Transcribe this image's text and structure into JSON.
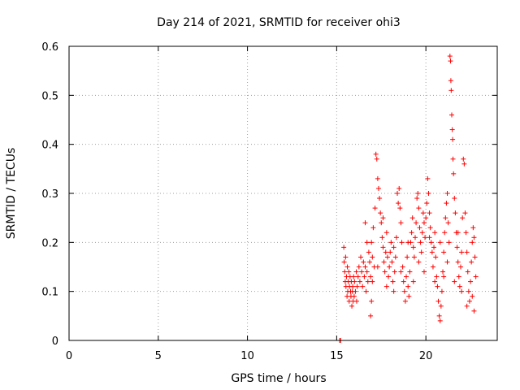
{
  "chart_data": {
    "type": "scatter",
    "title": "Day 214 of 2021, SRMTID for receiver ohi3",
    "xlabel": "GPS time / hours",
    "ylabel": "SRMTID / TECUs",
    "xlim": [
      0,
      24
    ],
    "ylim": [
      0,
      0.6
    ],
    "xticks": [
      0,
      5,
      10,
      15,
      20
    ],
    "xtick_labels": [
      "0",
      "5",
      "10",
      "15",
      "20"
    ],
    "yticks": [
      0,
      0.1,
      0.2,
      0.3,
      0.4,
      0.5,
      0.6
    ],
    "ytick_labels": [
      "0",
      "0.1",
      "0.2",
      "0.3",
      "0.4",
      "0.5",
      "0.6"
    ],
    "grid": true,
    "marker": "+",
    "color": "#ff0000",
    "series": [
      {
        "name": "SRMTID",
        "points": [
          [
            15.17,
            0.0
          ],
          [
            15.22,
            0.0
          ],
          [
            15.4,
            0.19
          ],
          [
            15.42,
            0.16
          ],
          [
            15.45,
            0.14
          ],
          [
            15.48,
            0.12
          ],
          [
            15.5,
            0.17
          ],
          [
            15.52,
            0.11
          ],
          [
            15.55,
            0.13
          ],
          [
            15.58,
            0.09
          ],
          [
            15.6,
            0.15
          ],
          [
            15.62,
            0.1
          ],
          [
            15.65,
            0.12
          ],
          [
            15.68,
            0.14
          ],
          [
            15.7,
            0.08
          ],
          [
            15.72,
            0.11
          ],
          [
            15.75,
            0.13
          ],
          [
            15.78,
            0.1
          ],
          [
            15.8,
            0.09
          ],
          [
            15.82,
            0.12
          ],
          [
            15.85,
            0.07
          ],
          [
            15.88,
            0.1
          ],
          [
            15.9,
            0.11
          ],
          [
            15.92,
            0.08
          ],
          [
            15.95,
            0.13
          ],
          [
            15.98,
            0.09
          ],
          [
            16.0,
            0.12
          ],
          [
            16.05,
            0.1
          ],
          [
            16.1,
            0.14
          ],
          [
            16.12,
            0.08
          ],
          [
            16.15,
            0.11
          ],
          [
            16.2,
            0.13
          ],
          [
            16.25,
            0.15
          ],
          [
            16.3,
            0.12
          ],
          [
            16.35,
            0.17
          ],
          [
            16.4,
            0.14
          ],
          [
            16.45,
            0.11
          ],
          [
            16.5,
            0.16
          ],
          [
            16.55,
            0.13
          ],
          [
            16.6,
            0.15
          ],
          [
            16.65,
            0.1
          ],
          [
            16.7,
            0.14
          ],
          [
            16.75,
            0.12
          ],
          [
            16.8,
            0.18
          ],
          [
            16.85,
            0.16
          ],
          [
            16.9,
            0.13
          ],
          [
            16.95,
            0.2
          ],
          [
            17.0,
            0.17
          ],
          [
            17.05,
            0.23
          ],
          [
            17.1,
            0.15
          ],
          [
            16.6,
            0.24
          ],
          [
            16.7,
            0.2
          ],
          [
            16.9,
            0.05
          ],
          [
            16.95,
            0.08
          ],
          [
            17.0,
            0.12
          ],
          [
            17.15,
            0.27
          ],
          [
            17.2,
            0.38
          ],
          [
            17.25,
            0.37
          ],
          [
            17.3,
            0.33
          ],
          [
            17.35,
            0.31
          ],
          [
            17.4,
            0.29
          ],
          [
            17.45,
            0.26
          ],
          [
            17.5,
            0.24
          ],
          [
            17.55,
            0.21
          ],
          [
            17.6,
            0.19
          ],
          [
            17.65,
            0.16
          ],
          [
            17.7,
            0.14
          ],
          [
            17.75,
            0.18
          ],
          [
            17.8,
            0.22
          ],
          [
            17.85,
            0.17
          ],
          [
            17.9,
            0.13
          ],
          [
            17.95,
            0.15
          ],
          [
            18.0,
            0.18
          ],
          [
            18.05,
            0.2
          ],
          [
            18.1,
            0.16
          ],
          [
            18.15,
            0.12
          ],
          [
            18.2,
            0.1
          ],
          [
            18.25,
            0.14
          ],
          [
            18.3,
            0.17
          ],
          [
            18.35,
            0.21
          ],
          [
            18.4,
            0.3
          ],
          [
            18.45,
            0.28
          ],
          [
            18.5,
            0.31
          ],
          [
            18.55,
            0.27
          ],
          [
            18.6,
            0.24
          ],
          [
            18.65,
            0.2
          ],
          [
            18.7,
            0.15
          ],
          [
            18.75,
            0.12
          ],
          [
            18.8,
            0.1
          ],
          [
            18.85,
            0.08
          ],
          [
            18.9,
            0.13
          ],
          [
            18.95,
            0.17
          ],
          [
            19.0,
            0.11
          ],
          [
            19.05,
            0.09
          ],
          [
            19.1,
            0.14
          ],
          [
            19.15,
            0.2
          ],
          [
            19.2,
            0.22
          ],
          [
            19.25,
            0.25
          ],
          [
            19.3,
            0.19
          ],
          [
            19.35,
            0.17
          ],
          [
            19.4,
            0.21
          ],
          [
            19.45,
            0.24
          ],
          [
            19.5,
            0.29
          ],
          [
            19.55,
            0.3
          ],
          [
            19.6,
            0.27
          ],
          [
            19.65,
            0.23
          ],
          [
            19.7,
            0.2
          ],
          [
            19.75,
            0.18
          ],
          [
            19.8,
            0.22
          ],
          [
            19.85,
            0.26
          ],
          [
            19.9,
            0.24
          ],
          [
            19.95,
            0.21
          ],
          [
            20.0,
            0.25
          ],
          [
            20.05,
            0.28
          ],
          [
            20.1,
            0.33
          ],
          [
            20.15,
            0.3
          ],
          [
            20.2,
            0.26
          ],
          [
            20.25,
            0.23
          ],
          [
            20.3,
            0.2
          ],
          [
            20.35,
            0.18
          ],
          [
            20.4,
            0.15
          ],
          [
            20.45,
            0.19
          ],
          [
            20.5,
            0.22
          ],
          [
            20.55,
            0.17
          ],
          [
            20.6,
            0.13
          ],
          [
            20.65,
            0.11
          ],
          [
            20.7,
            0.08
          ],
          [
            20.75,
            0.05
          ],
          [
            20.8,
            0.04
          ],
          [
            20.85,
            0.07
          ],
          [
            20.9,
            0.1
          ],
          [
            20.95,
            0.14
          ],
          [
            21.0,
            0.18
          ],
          [
            21.05,
            0.22
          ],
          [
            21.1,
            0.25
          ],
          [
            21.15,
            0.28
          ],
          [
            21.2,
            0.3
          ],
          [
            21.25,
            0.24
          ],
          [
            21.3,
            0.2
          ],
          [
            21.35,
            0.58
          ],
          [
            21.38,
            0.57
          ],
          [
            21.4,
            0.53
          ],
          [
            21.42,
            0.51
          ],
          [
            21.45,
            0.46
          ],
          [
            21.48,
            0.43
          ],
          [
            21.5,
            0.41
          ],
          [
            21.52,
            0.37
          ],
          [
            21.55,
            0.34
          ],
          [
            21.6,
            0.29
          ],
          [
            21.65,
            0.26
          ],
          [
            21.7,
            0.22
          ],
          [
            21.75,
            0.19
          ],
          [
            21.8,
            0.16
          ],
          [
            21.85,
            0.13
          ],
          [
            21.9,
            0.11
          ],
          [
            21.95,
            0.15
          ],
          [
            22.0,
            0.18
          ],
          [
            22.05,
            0.25
          ],
          [
            22.1,
            0.37
          ],
          [
            22.15,
            0.36
          ],
          [
            22.2,
            0.26
          ],
          [
            22.25,
            0.22
          ],
          [
            22.3,
            0.18
          ],
          [
            22.35,
            0.14
          ],
          [
            22.4,
            0.1
          ],
          [
            22.45,
            0.08
          ],
          [
            22.5,
            0.12
          ],
          [
            22.55,
            0.16
          ],
          [
            22.6,
            0.2
          ],
          [
            22.65,
            0.23
          ],
          [
            22.7,
            0.21
          ],
          [
            22.75,
            0.17
          ],
          [
            22.8,
            0.13
          ],
          [
            17.3,
            0.15
          ],
          [
            17.6,
            0.25
          ],
          [
            17.8,
            0.11
          ],
          [
            18.2,
            0.19
          ],
          [
            18.6,
            0.14
          ],
          [
            19.0,
            0.2
          ],
          [
            19.3,
            0.12
          ],
          [
            19.6,
            0.16
          ],
          [
            19.9,
            0.14
          ],
          [
            20.2,
            0.21
          ],
          [
            20.5,
            0.12
          ],
          [
            20.8,
            0.2
          ],
          [
            21.0,
            0.13
          ],
          [
            21.2,
            0.16
          ],
          [
            21.6,
            0.12
          ],
          [
            21.8,
            0.22
          ],
          [
            22.0,
            0.1
          ],
          [
            22.3,
            0.07
          ],
          [
            22.6,
            0.09
          ],
          [
            22.7,
            0.06
          ]
        ]
      }
    ]
  }
}
